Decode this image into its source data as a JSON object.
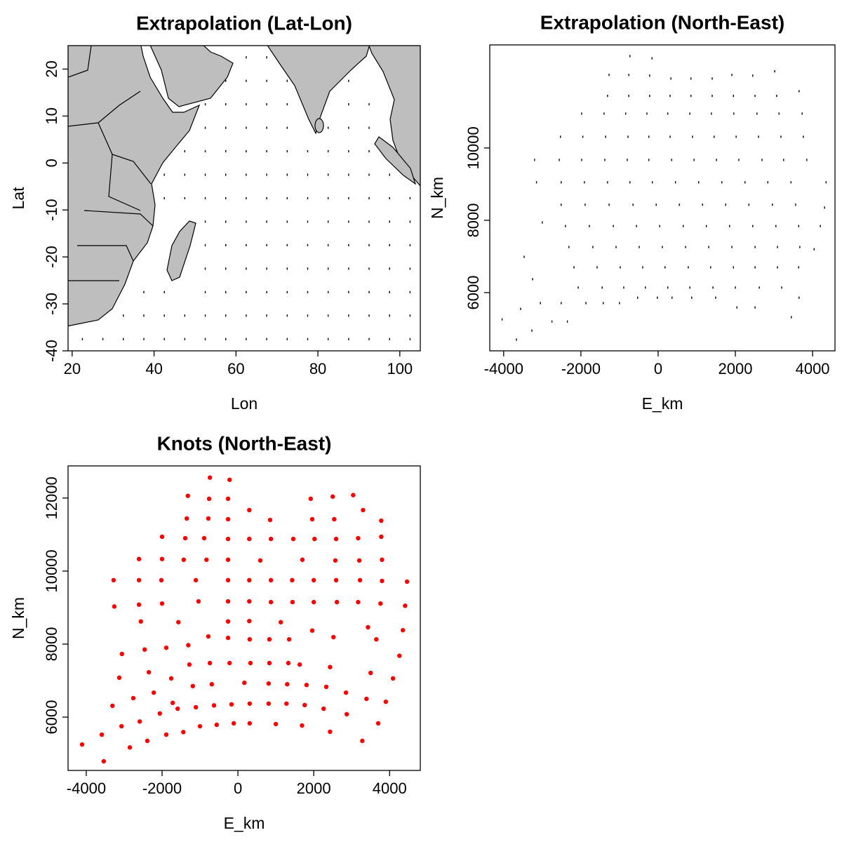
{
  "chart_data": [
    {
      "type": "scatter",
      "title": "Extrapolation (Lat-Lon)",
      "xlabel": "Lon",
      "ylabel": "Lat",
      "color": "#000000",
      "xlim": [
        19,
        105
      ],
      "ylim": [
        -40,
        25
      ],
      "xticks": [
        20,
        40,
        60,
        80,
        100
      ],
      "yticks": [
        -40,
        -30,
        -20,
        -10,
        0,
        10,
        20
      ],
      "x": [
        62.5,
        67.5,
        57.5,
        62.5,
        67.5,
        72.5,
        87.5,
        52.5,
        57.5,
        62.5,
        67.5,
        72.5,
        87.5,
        92.5,
        52.5,
        57.5,
        62.5,
        67.5,
        72.5,
        82.5,
        87.5,
        92.5,
        47.5,
        52.5,
        57.5,
        62.5,
        67.5,
        72.5,
        77.5,
        82.5,
        87.5,
        92.5,
        42.5,
        47.5,
        52.5,
        57.5,
        62.5,
        67.5,
        72.5,
        77.5,
        82.5,
        87.5,
        92.5,
        97.5,
        42.5,
        47.5,
        52.5,
        57.5,
        62.5,
        67.5,
        72.5,
        77.5,
        82.5,
        87.5,
        92.5,
        97.5,
        102.5,
        52.5,
        57.5,
        62.5,
        67.5,
        72.5,
        77.5,
        82.5,
        87.5,
        92.5,
        97.5,
        102.5,
        52.5,
        57.5,
        62.5,
        67.5,
        72.5,
        77.5,
        82.5,
        87.5,
        92.5,
        97.5,
        102.5,
        52.5,
        57.5,
        62.5,
        67.5,
        72.5,
        77.5,
        82.5,
        87.5,
        92.5,
        97.5,
        102.5,
        37.5,
        42.5,
        52.5,
        57.5,
        62.5,
        67.5,
        72.5,
        77.5,
        82.5,
        87.5,
        92.5,
        97.5,
        102.5,
        32.5,
        37.5,
        42.5,
        47.5,
        52.5,
        57.5,
        62.5,
        67.5,
        72.5,
        77.5,
        82.5,
        87.5,
        92.5,
        97.5,
        102.5,
        22.5,
        27.5,
        32.5,
        37.5,
        42.5,
        47.5,
        52.5,
        57.5,
        62.5,
        67.5,
        72.5,
        77.5,
        82.5,
        87.5,
        92.5,
        97.5,
        102.5
      ],
      "y": [
        22.5,
        22.5,
        17.5,
        17.5,
        17.5,
        17.5,
        17.5,
        12.5,
        12.5,
        12.5,
        12.5,
        12.5,
        12.5,
        12.5,
        7.5,
        7.5,
        7.5,
        7.5,
        7.5,
        7.5,
        7.5,
        7.5,
        2.5,
        2.5,
        2.5,
        2.5,
        2.5,
        2.5,
        2.5,
        2.5,
        2.5,
        2.5,
        -2.5,
        -2.5,
        -2.5,
        -2.5,
        -2.5,
        -2.5,
        -2.5,
        -2.5,
        -2.5,
        -2.5,
        -2.5,
        -2.5,
        -7.5,
        -7.5,
        -7.5,
        -7.5,
        -7.5,
        -7.5,
        -7.5,
        -7.5,
        -7.5,
        -7.5,
        -7.5,
        -7.5,
        -7.5,
        -12.5,
        -12.5,
        -12.5,
        -12.5,
        -12.5,
        -12.5,
        -12.5,
        -12.5,
        -12.5,
        -12.5,
        -12.5,
        -17.5,
        -17.5,
        -17.5,
        -17.5,
        -17.5,
        -17.5,
        -17.5,
        -17.5,
        -17.5,
        -17.5,
        -17.5,
        -22.5,
        -22.5,
        -22.5,
        -22.5,
        -22.5,
        -22.5,
        -22.5,
        -22.5,
        -22.5,
        -22.5,
        -22.5,
        -27.5,
        -27.5,
        -27.5,
        -27.5,
        -27.5,
        -27.5,
        -27.5,
        -27.5,
        -27.5,
        -27.5,
        -27.5,
        -27.5,
        -27.5,
        -32.5,
        -32.5,
        -32.5,
        -32.5,
        -32.5,
        -32.5,
        -32.5,
        -32.5,
        -32.5,
        -32.5,
        -32.5,
        -32.5,
        -32.5,
        -32.5,
        -32.5,
        -37.5,
        -37.5,
        -37.5,
        -37.5,
        -37.5,
        -37.5,
        -37.5,
        -37.5,
        -37.5,
        -37.5,
        -37.5,
        -37.5,
        -37.5,
        -37.5,
        -37.5,
        -37.5,
        -37.5
      ]
    },
    {
      "type": "scatter",
      "title": "Extrapolation (North-East)",
      "xlabel": "E_km",
      "ylabel": "N_km",
      "color": "#000000",
      "xlim": [
        -4360,
        4580
      ],
      "ylim": [
        4390,
        12850
      ],
      "xticks": [
        -4000,
        -2000,
        0,
        2000,
        4000
      ],
      "yticks": [
        6000,
        8000,
        10000
      ],
      "x": [
        -730,
        -160,
        3020,
        -1270,
        -760,
        -220,
        1910,
        2450,
        330,
        850,
        1400,
        3650,
        -1310,
        -760,
        -220,
        310,
        850,
        1400,
        1950,
        2510,
        3070,
        -1980,
        -1400,
        -840,
        -290,
        250,
        820,
        1380,
        1960,
        2560,
        3130,
        3730,
        -2530,
        -1950,
        -1360,
        -780,
        -240,
        310,
        890,
        1450,
        2020,
        2600,
        3180,
        3760,
        -3200,
        -2560,
        -1980,
        -1380,
        -800,
        -240,
        350,
        930,
        1510,
        2090,
        2690,
        3250,
        3850,
        -3150,
        -2510,
        -1910,
        -1310,
        -730,
        -150,
        450,
        1050,
        1650,
        2250,
        2840,
        3440,
        4350,
        -2510,
        -1890,
        -1270,
        -650,
        -50,
        550,
        1150,
        1750,
        2350,
        2960,
        3560,
        4310,
        -3000,
        -2400,
        -1780,
        -1160,
        -560,
        40,
        650,
        1250,
        1850,
        2450,
        3050,
        3640,
        4200,
        -2310,
        -1690,
        -1090,
        -490,
        110,
        710,
        1310,
        1910,
        2510,
        3090,
        3670,
        4040,
        -3470,
        -2180,
        -1580,
        -980,
        -400,
        180,
        780,
        1360,
        1950,
        2510,
        3090,
        3640,
        -3250,
        -2070,
        -1450,
        -890,
        -330,
        250,
        820,
        1420,
        2000,
        2620,
        3200,
        -530,
        -20,
        360,
        870,
        1490,
        3650,
        -3050,
        -2510,
        -1870,
        -1420,
        -1000,
        2040,
        2510,
        -3560,
        3450,
        -4040,
        -2750,
        -2350,
        -3270,
        -3670
      ],
      "y": [
        12540,
        12480,
        12120,
        12020,
        12020,
        12000,
        12020,
        12000,
        11920,
        11920,
        11920,
        11570,
        11440,
        11440,
        11440,
        11440,
        11440,
        11440,
        11440,
        11440,
        11440,
        10950,
        10950,
        10950,
        10950,
        10950,
        10950,
        10950,
        10950,
        10950,
        10950,
        10950,
        10310,
        10310,
        10310,
        10310,
        10310,
        10310,
        10310,
        10310,
        10310,
        10310,
        10310,
        10310,
        9670,
        9670,
        9670,
        9670,
        9670,
        9670,
        9670,
        9670,
        9670,
        9670,
        9670,
        9670,
        9670,
        9050,
        9050,
        9050,
        9050,
        9050,
        9050,
        9050,
        9050,
        9050,
        9050,
        9050,
        9050,
        9050,
        8430,
        8430,
        8430,
        8430,
        8430,
        8430,
        8430,
        8430,
        8430,
        8430,
        8430,
        8350,
        7940,
        7840,
        7840,
        7840,
        7840,
        7840,
        7840,
        7840,
        7840,
        7840,
        7840,
        7840,
        7840,
        7260,
        7260,
        7260,
        7260,
        7260,
        7260,
        7260,
        7260,
        7260,
        7260,
        7260,
        7200,
        6990,
        6700,
        6700,
        6700,
        6700,
        6700,
        6700,
        6700,
        6700,
        6700,
        6700,
        6700,
        6370,
        6140,
        6140,
        6140,
        6140,
        6140,
        6140,
        6140,
        6140,
        6140,
        6140,
        5860,
        5860,
        5860,
        5860,
        5860,
        5860,
        5710,
        5710,
        5710,
        5710,
        5710,
        5590,
        5590,
        5550,
        5320,
        5260,
        5200,
        5200,
        4950,
        4700
      ]
    },
    {
      "type": "scatter",
      "title": "Knots (North-East)",
      "xlabel": "E_km",
      "ylabel": "N_km",
      "color": "#ff0000",
      "xlim": [
        -4480,
        4810
      ],
      "ylim": [
        4540,
        12880
      ],
      "xticks": [
        -4000,
        -2000,
        0,
        2000,
        4000
      ],
      "yticks": [
        6000,
        8000,
        10000,
        12000
      ],
      "x": [
        -740,
        -220,
        -1320,
        -760,
        -260,
        1920,
        2500,
        3040,
        300,
        3300,
        -1350,
        -780,
        -260,
        850,
        1960,
        2540,
        3780,
        -2000,
        -1390,
        -890,
        -260,
        300,
        870,
        1460,
        2020,
        2590,
        3170,
        3780,
        -2610,
        -2000,
        -1430,
        -830,
        -260,
        590,
        1700,
        2570,
        3200,
        3800,
        -3280,
        -2610,
        -2020,
        -1110,
        -260,
        300,
        870,
        1430,
        2000,
        2590,
        3220,
        3800,
        4460,
        -3260,
        -2610,
        -2000,
        -1040,
        -260,
        300,
        870,
        1440,
        2000,
        2610,
        3170,
        3760,
        4410,
        -2560,
        -1570,
        -260,
        300,
        1130,
        1960,
        3430,
        4350,
        -780,
        -260,
        310,
        830,
        1350,
        2520,
        3650,
        -3060,
        -2460,
        -1890,
        -1310,
        4260,
        -1280,
        -740,
        -220,
        330,
        830,
        1330,
        1630,
        2430,
        3500,
        -3130,
        -2350,
        -1760,
        4090,
        -1190,
        -690,
        170,
        810,
        1300,
        1810,
        2330,
        -2760,
        -2220,
        2850,
        3390,
        3900,
        -3310,
        -1720,
        -1110,
        -630,
        -170,
        310,
        810,
        1280,
        1760,
        2260,
        -2060,
        -1590,
        2870,
        -3070,
        -2590,
        -1000,
        -560,
        -110,
        310,
        1000,
        1690,
        3700,
        -3590,
        -1890,
        -1440,
        -2390,
        2430,
        3280,
        -4110,
        -2850,
        -3540
      ],
      "y": [
        12560,
        12500,
        12060,
        11980,
        11980,
        11980,
        12040,
        12080,
        11670,
        11670,
        11440,
        11440,
        11420,
        11400,
        11420,
        11420,
        11380,
        10940,
        10900,
        10900,
        10880,
        10880,
        10880,
        10880,
        10880,
        10880,
        10900,
        10940,
        10330,
        10330,
        10310,
        10310,
        10310,
        10290,
        10310,
        10290,
        10290,
        10310,
        9750,
        9750,
        9750,
        9750,
        9750,
        9750,
        9750,
        9750,
        9750,
        9750,
        9750,
        9730,
        9710,
        9030,
        9080,
        9110,
        9170,
        9170,
        9170,
        9150,
        9150,
        9150,
        9150,
        9150,
        9110,
        9050,
        8620,
        8600,
        8620,
        8630,
        8600,
        8370,
        8460,
        8380,
        8210,
        8170,
        8130,
        8130,
        8130,
        8190,
        8130,
        7730,
        7850,
        7900,
        7970,
        7680,
        7440,
        7480,
        7480,
        7480,
        7480,
        7480,
        7440,
        7370,
        7210,
        7080,
        7230,
        7060,
        7060,
        6850,
        6900,
        6940,
        6920,
        6900,
        6880,
        6830,
        6520,
        6670,
        6670,
        6500,
        6420,
        6310,
        6390,
        6270,
        6320,
        6350,
        6370,
        6370,
        6370,
        6330,
        6230,
        6100,
        6230,
        6080,
        5750,
        5880,
        5750,
        5790,
        5830,
        5830,
        5810,
        5770,
        5830,
        5520,
        5520,
        5590,
        5350,
        5600,
        5350,
        5250,
        5170,
        4790
      ]
    }
  ]
}
